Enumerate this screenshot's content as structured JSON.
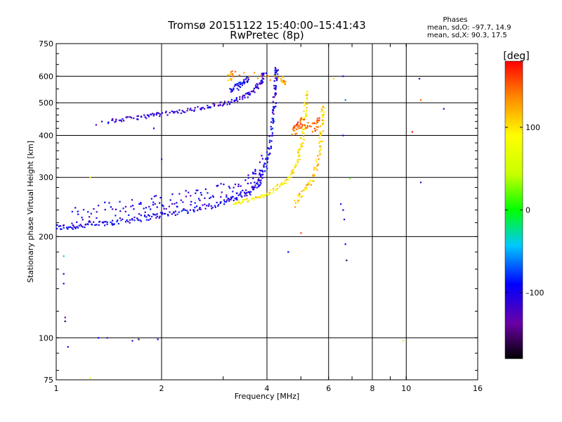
{
  "chart_data": {
    "type": "scatter",
    "title": "Tromsø 20151122 15:40:00–15:41:43",
    "subtitle": "RwPretec (8p)",
    "xlabel": "Frequency [MHz]",
    "ylabel": "Stationary phase Virtual Height [km]",
    "x_scale": "log",
    "y_scale": "log",
    "xlim": [
      1,
      16
    ],
    "ylim": [
      75,
      750
    ],
    "x_ticks": [
      {
        "value": 1,
        "label": "1"
      },
      {
        "value": 2,
        "label": "2"
      },
      {
        "value": 4,
        "label": "4"
      },
      {
        "value": 6,
        "label": "6"
      },
      {
        "value": 8,
        "label": "8"
      },
      {
        "value": 10,
        "label": "10"
      },
      {
        "value": 16,
        "label": "16"
      }
    ],
    "x_grid": [
      2,
      4,
      6,
      8,
      10
    ],
    "y_ticks": [
      {
        "value": 75,
        "label": "75"
      },
      {
        "value": 100,
        "label": "100"
      },
      {
        "value": 200,
        "label": "200"
      },
      {
        "value": 300,
        "label": "300"
      },
      {
        "value": 400,
        "label": "400"
      },
      {
        "value": 500,
        "label": "500"
      },
      {
        "value": 600,
        "label": "600"
      },
      {
        "value": 750,
        "label": "750"
      }
    ],
    "y_grid": [
      100,
      200,
      300,
      400,
      500,
      600
    ],
    "grid": true,
    "phase_stats": {
      "title": "Phases",
      "line_o": "mean, sd,O: –97.7, 14.9",
      "line_x": "mean, sd,X:  90.3, 17.5"
    },
    "colorbar": {
      "label": "[deg]",
      "min": -180,
      "max": 180,
      "ticks": [
        {
          "value": 100,
          "label": "100"
        },
        {
          "value": 0,
          "label": "0"
        },
        {
          "value": -100,
          "label": "–100"
        }
      ]
    },
    "traces": [
      {
        "mode": "O",
        "phase": -100,
        "spread": 0.018,
        "points": [
          [
            1.0,
            213
          ],
          [
            1.1,
            214
          ],
          [
            1.2,
            216
          ],
          [
            1.35,
            219
          ],
          [
            1.5,
            222
          ],
          [
            1.7,
            226
          ],
          [
            1.9,
            230
          ],
          [
            2.1,
            234
          ],
          [
            2.4,
            240
          ],
          [
            2.7,
            246
          ],
          [
            3.0,
            253
          ],
          [
            3.3,
            262
          ],
          [
            3.6,
            274
          ],
          [
            3.8,
            290
          ],
          [
            3.95,
            320
          ],
          [
            4.05,
            360
          ],
          [
            4.12,
            410
          ],
          [
            4.18,
            470
          ],
          [
            4.22,
            530
          ],
          [
            4.25,
            600
          ],
          [
            4.27,
            640
          ]
        ]
      },
      {
        "mode": "O",
        "phase": -105,
        "spread": 0.06,
        "points": [
          [
            1.1,
            228
          ],
          [
            1.3,
            234
          ],
          [
            1.55,
            240
          ],
          [
            1.8,
            246
          ],
          [
            2.0,
            250
          ],
          [
            2.3,
            256
          ],
          [
            2.6,
            262
          ],
          [
            3.0,
            270
          ],
          [
            3.3,
            278
          ],
          [
            3.6,
            290
          ],
          [
            3.8,
            305
          ],
          [
            3.9,
            330
          ]
        ]
      },
      {
        "mode": "O",
        "phase": -110,
        "spread": 0.012,
        "points": [
          [
            1.4,
            440
          ],
          [
            1.6,
            448
          ],
          [
            1.8,
            456
          ],
          [
            2.0,
            463
          ],
          [
            2.3,
            472
          ],
          [
            2.6,
            483
          ],
          [
            2.9,
            494
          ],
          [
            3.2,
            506
          ],
          [
            3.5,
            525
          ],
          [
            3.7,
            550
          ],
          [
            3.85,
            580
          ],
          [
            3.95,
            620
          ]
        ]
      },
      {
        "mode": "O",
        "phase": -95,
        "spread": 0.02,
        "points": [
          [
            3.15,
            545
          ],
          [
            3.3,
            560
          ],
          [
            3.45,
            580
          ],
          [
            3.55,
            600
          ]
        ]
      },
      {
        "mode": "X",
        "phase": 95,
        "spread": 0.012,
        "points": [
          [
            3.2,
            250
          ],
          [
            3.5,
            256
          ],
          [
            3.8,
            262
          ],
          [
            4.1,
            272
          ],
          [
            4.4,
            285
          ],
          [
            4.7,
            305
          ],
          [
            4.9,
            335
          ],
          [
            5.0,
            370
          ],
          [
            5.1,
            420
          ],
          [
            5.15,
            480
          ],
          [
            5.2,
            545
          ]
        ]
      },
      {
        "mode": "X",
        "phase": 110,
        "spread": 0.02,
        "points": [
          [
            4.8,
            250
          ],
          [
            5.1,
            270
          ],
          [
            5.4,
            300
          ],
          [
            5.6,
            340
          ],
          [
            5.7,
            390
          ],
          [
            5.75,
            440
          ],
          [
            5.8,
            490
          ]
        ]
      },
      {
        "mode": "X",
        "phase": 150,
        "spread": 0.03,
        "points": [
          [
            4.7,
            410
          ],
          [
            4.9,
            420
          ],
          [
            5.0,
            440
          ],
          [
            5.5,
            420
          ],
          [
            5.6,
            440
          ]
        ]
      },
      {
        "mode": "X",
        "phase": 130,
        "spread": 0.02,
        "points": [
          [
            3.1,
            590
          ],
          [
            3.2,
            610
          ],
          [
            4.4,
            590
          ],
          [
            4.5,
            580
          ]
        ]
      }
    ],
    "scattered_points": [
      [
        6.6,
        600,
        -110
      ],
      [
        6.7,
        510,
        -60
      ],
      [
        6.6,
        400,
        -100
      ],
      [
        6.6,
        240,
        -95
      ],
      [
        6.65,
        225,
        -105
      ],
      [
        6.7,
        190,
        -100
      ],
      [
        6.75,
        170,
        -160
      ],
      [
        6.9,
        298,
        20
      ],
      [
        6.5,
        250,
        -110
      ],
      [
        4.6,
        180,
        -90
      ],
      [
        5.0,
        205,
        160
      ],
      [
        10.4,
        410,
        170
      ],
      [
        10.9,
        590,
        -100
      ],
      [
        11.0,
        290,
        -120
      ],
      [
        12.8,
        480,
        -120
      ],
      [
        11.0,
        510,
        150
      ],
      [
        9.8,
        98,
        100
      ],
      [
        1.05,
        145,
        -100
      ],
      [
        1.05,
        155,
        -100
      ],
      [
        1.05,
        175,
        -40
      ],
      [
        1.06,
        115,
        -140
      ],
      [
        1.06,
        112,
        -160
      ],
      [
        1.08,
        94,
        -100
      ],
      [
        1.25,
        76,
        90
      ],
      [
        1.32,
        100,
        -100
      ],
      [
        1.4,
        100,
        -130
      ],
      [
        1.65,
        98,
        -110
      ],
      [
        1.72,
        99,
        -160
      ],
      [
        1.95,
        99,
        -110
      ],
      [
        2.0,
        340,
        -120
      ],
      [
        1.9,
        420,
        -100
      ],
      [
        1.25,
        300,
        100
      ],
      [
        1.3,
        430,
        -130
      ],
      [
        1.35,
        440,
        -100
      ],
      [
        6.2,
        590,
        100
      ]
    ]
  }
}
